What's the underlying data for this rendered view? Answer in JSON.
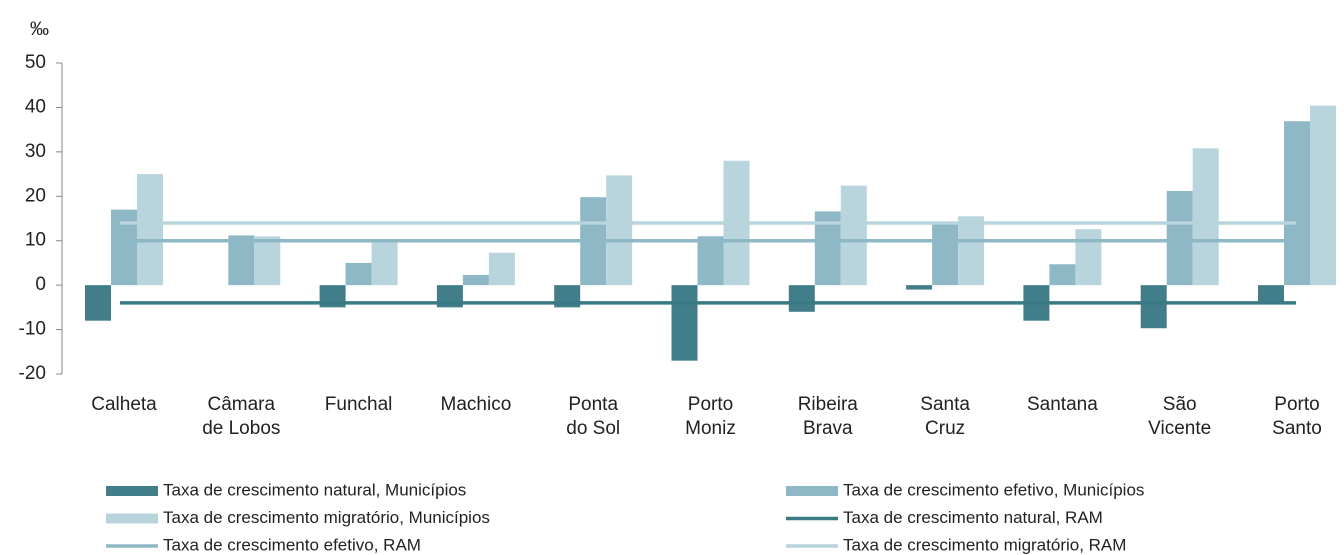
{
  "chart_data": {
    "type": "bar",
    "y_label": "‰",
    "categories": [
      [
        "Calheta"
      ],
      [
        "Câmara",
        "de Lobos"
      ],
      [
        "Funchal"
      ],
      [
        "Machico"
      ],
      [
        "Ponta",
        "do Sol"
      ],
      [
        "Porto",
        "Moniz"
      ],
      [
        "Ribeira",
        "Brava"
      ],
      [
        "Santa",
        "Cruz"
      ],
      [
        "Santana"
      ],
      [
        "São",
        "Vicente"
      ],
      [
        "Porto",
        "Santo"
      ]
    ],
    "series": [
      {
        "name": "Taxa de crescimento natural, Municípios",
        "type": "bar",
        "color": "#417e8a",
        "values": [
          -8,
          0,
          -5,
          -5,
          -5,
          -17,
          -6,
          -1,
          -8,
          -9.7,
          -3.9
        ]
      },
      {
        "name": "Taxa de crescimento efetivo, Municípios",
        "type": "bar",
        "color": "#8fb8c7",
        "values": [
          17,
          11.2,
          5,
          2.3,
          19.8,
          11,
          16.6,
          14,
          4.7,
          21.2,
          36.9
        ]
      },
      {
        "name": "Taxa de crescimento migratório, Municípios",
        "type": "bar",
        "color": "#b8d4dc",
        "values": [
          25,
          11,
          10,
          7.3,
          24.7,
          28,
          22.4,
          15.5,
          12.6,
          30.8,
          40.4
        ]
      },
      {
        "name": "Taxa de crescimento natural, RAM",
        "type": "line",
        "color": "#3a7a85",
        "value": -4
      },
      {
        "name": "Taxa de crescimento efetivo, RAM",
        "type": "line",
        "color": "#8fb8c7",
        "value": 10
      },
      {
        "name": "Taxa de crescimento migratório, RAM",
        "type": "line",
        "color": "#b8d4dc",
        "value": 14
      }
    ],
    "ylim": [
      -20,
      50
    ],
    "yticks": [
      -20,
      -10,
      0,
      10,
      20,
      30,
      40,
      50
    ]
  }
}
